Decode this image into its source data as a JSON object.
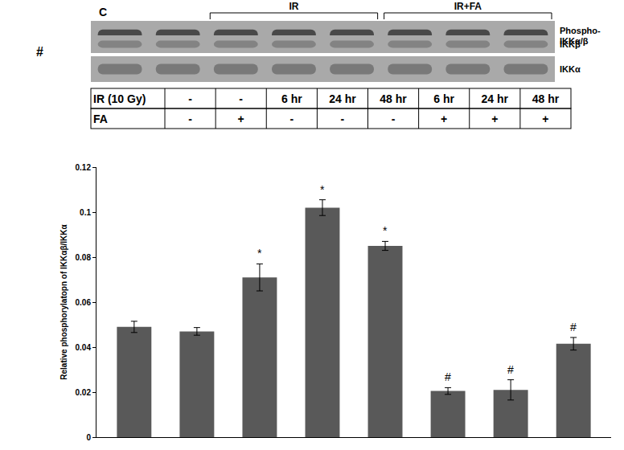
{
  "blot": {
    "panel_mark": "#",
    "groups": [
      {
        "label": "C",
        "start": 0,
        "end": 1,
        "bracket": false
      },
      {
        "label": "IR",
        "start": 2,
        "end": 4,
        "bracket": true
      },
      {
        "label": "IR+FA",
        "start": 5,
        "end": 7,
        "bracket": true
      }
    ],
    "rows": [
      [
        "Phospho-",
        "IKKα/β"
      ],
      [
        "IKKβ"
      ],
      [
        "IKKα"
      ]
    ]
  },
  "table": {
    "rows": [
      {
        "label": "IR (10 Gy)",
        "cells": [
          "-",
          "-",
          "6 hr",
          "24 hr",
          "48 hr",
          "6 hr",
          "24 hr",
          "48 hr"
        ]
      },
      {
        "label": "FA",
        "cells": [
          "-",
          "+",
          "-",
          "-",
          "-",
          "+",
          "+",
          "+"
        ]
      }
    ]
  },
  "chart_data": {
    "type": "bar",
    "categories": [
      null,
      null,
      null,
      null,
      null,
      null,
      null,
      null
    ],
    "values": [
      0.049,
      0.047,
      0.071,
      0.102,
      0.085,
      0.0205,
      0.021,
      0.0415
    ],
    "error": [
      0.0025,
      0.0017,
      0.006,
      0.0035,
      0.002,
      0.0015,
      0.0045,
      0.0028
    ],
    "color": "#595959",
    "y_label": "Relative phosphorylatopn of IKKαβ/IKKα",
    "ylim": [
      0,
      0.12
    ],
    "yticks": [
      0,
      0.02,
      0.04,
      0.06,
      0.08,
      0.1,
      0.12
    ],
    "grid": false,
    "tick_labels": "y",
    "annotations": [
      {
        "category_index": 2,
        "text": "*"
      },
      {
        "category_index": 3,
        "text": "*"
      },
      {
        "category_index": 4,
        "text": "*"
      },
      {
        "category_index": 5,
        "text": "#"
      },
      {
        "category_index": 6,
        "text": "#"
      },
      {
        "category_index": 7,
        "text": "#"
      }
    ]
  }
}
